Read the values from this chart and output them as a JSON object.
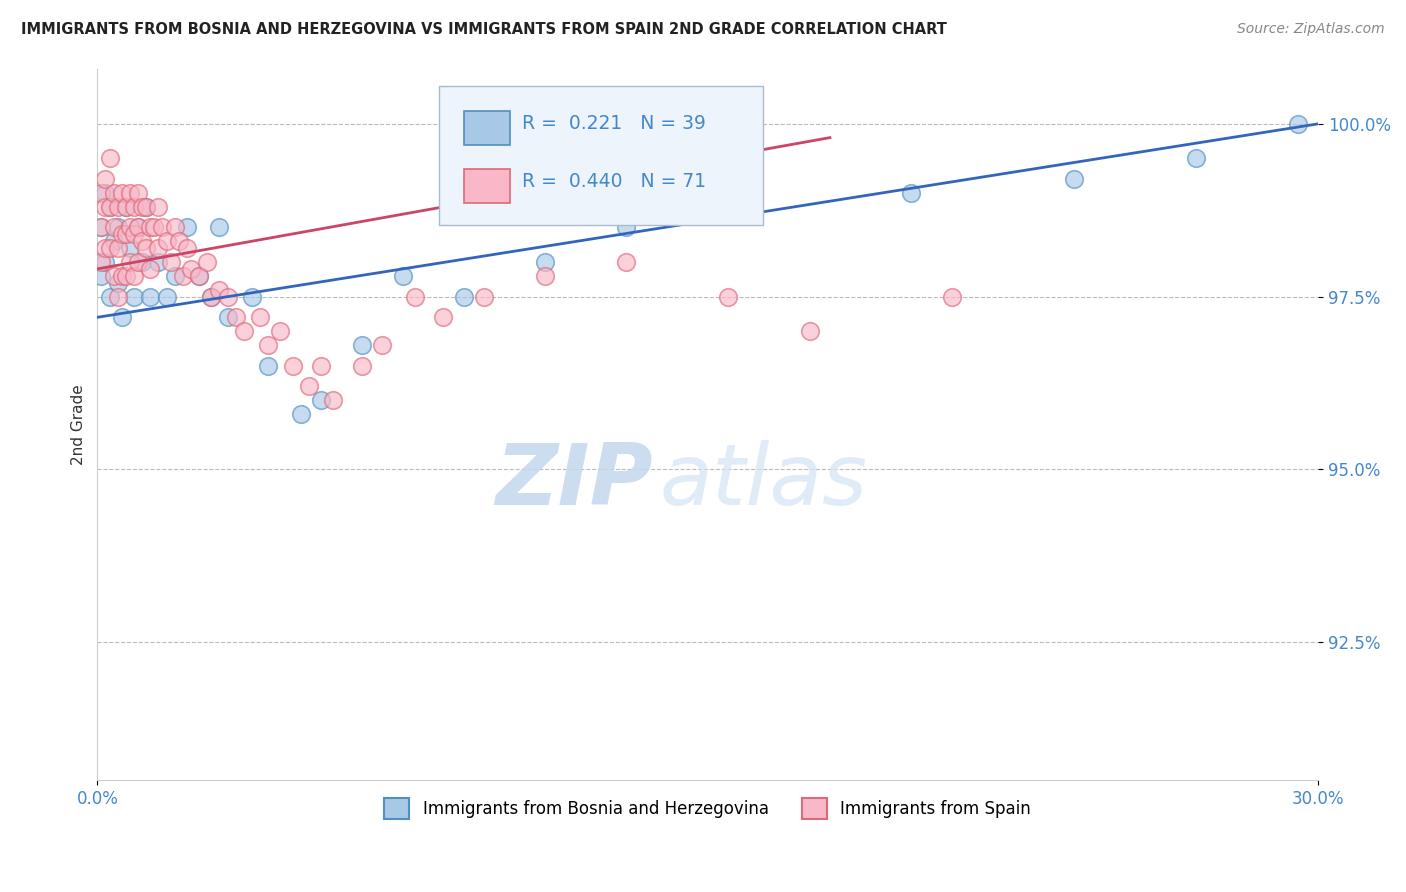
{
  "title": "IMMIGRANTS FROM BOSNIA AND HERZEGOVINA VS IMMIGRANTS FROM SPAIN 2ND GRADE CORRELATION CHART",
  "source_text": "Source: ZipAtlas.com",
  "ylabel": "2nd Grade",
  "xlim": [
    0.0,
    0.3
  ],
  "ylim": [
    0.905,
    1.008
  ],
  "yticks": [
    0.925,
    0.95,
    0.975,
    1.0
  ],
  "ytick_labels": [
    "92.5%",
    "95.0%",
    "97.5%",
    "100.0%"
  ],
  "xtick_labels": [
    "0.0%",
    "30.0%"
  ],
  "xticks": [
    0.0,
    0.3
  ],
  "legend_entries": [
    {
      "label": "Immigrants from Bosnia and Herzegovina",
      "color": "#7ab0d4"
    },
    {
      "label": "Immigrants from Spain",
      "color": "#f4a0b0"
    }
  ],
  "series": [
    {
      "name": "Bosnia and Herzegovina",
      "R": 0.221,
      "N": 39,
      "color_fill": "#a8c8e8",
      "color_edge": "#5090c0",
      "line_color": "#3366bb",
      "line_x0": 0.0,
      "line_y0": 0.972,
      "line_x1": 0.3,
      "line_y1": 1.0,
      "x": [
        0.001,
        0.001,
        0.002,
        0.002,
        0.003,
        0.003,
        0.004,
        0.005,
        0.005,
        0.006,
        0.007,
        0.008,
        0.009,
        0.01,
        0.011,
        0.012,
        0.013,
        0.015,
        0.017,
        0.019,
        0.022,
        0.025,
        0.028,
        0.03,
        0.032,
        0.038,
        0.042,
        0.05,
        0.055,
        0.065,
        0.075,
        0.09,
        0.11,
        0.13,
        0.16,
        0.2,
        0.24,
        0.27,
        0.295
      ],
      "y": [
        0.978,
        0.985,
        0.98,
        0.99,
        0.975,
        0.988,
        0.983,
        0.977,
        0.985,
        0.972,
        0.988,
        0.982,
        0.975,
        0.985,
        0.98,
        0.988,
        0.975,
        0.98,
        0.975,
        0.978,
        0.985,
        0.978,
        0.975,
        0.985,
        0.972,
        0.975,
        0.965,
        0.958,
        0.96,
        0.968,
        0.978,
        0.975,
        0.98,
        0.985,
        0.988,
        0.99,
        0.992,
        0.995,
        1.0
      ]
    },
    {
      "name": "Spain",
      "R": 0.44,
      "N": 71,
      "color_fill": "#f8b8c8",
      "color_edge": "#e06878",
      "line_color": "#cc4466",
      "line_x0": 0.0,
      "line_y0": 0.979,
      "line_x1": 0.18,
      "line_y1": 0.998,
      "x": [
        0.001,
        0.001,
        0.001,
        0.002,
        0.002,
        0.002,
        0.003,
        0.003,
        0.003,
        0.004,
        0.004,
        0.004,
        0.005,
        0.005,
        0.005,
        0.006,
        0.006,
        0.006,
        0.007,
        0.007,
        0.007,
        0.008,
        0.008,
        0.008,
        0.009,
        0.009,
        0.009,
        0.01,
        0.01,
        0.01,
        0.011,
        0.011,
        0.012,
        0.012,
        0.013,
        0.013,
        0.014,
        0.015,
        0.015,
        0.016,
        0.017,
        0.018,
        0.019,
        0.02,
        0.021,
        0.022,
        0.023,
        0.025,
        0.027,
        0.028,
        0.03,
        0.032,
        0.034,
        0.036,
        0.04,
        0.042,
        0.045,
        0.048,
        0.052,
        0.055,
        0.058,
        0.065,
        0.07,
        0.078,
        0.085,
        0.095,
        0.11,
        0.13,
        0.155,
        0.175,
        0.21
      ],
      "y": [
        0.99,
        0.985,
        0.98,
        0.992,
        0.988,
        0.982,
        0.995,
        0.988,
        0.982,
        0.99,
        0.985,
        0.978,
        0.988,
        0.982,
        0.975,
        0.99,
        0.984,
        0.978,
        0.988,
        0.984,
        0.978,
        0.99,
        0.985,
        0.98,
        0.988,
        0.984,
        0.978,
        0.99,
        0.985,
        0.98,
        0.988,
        0.983,
        0.988,
        0.982,
        0.985,
        0.979,
        0.985,
        0.988,
        0.982,
        0.985,
        0.983,
        0.98,
        0.985,
        0.983,
        0.978,
        0.982,
        0.979,
        0.978,
        0.98,
        0.975,
        0.976,
        0.975,
        0.972,
        0.97,
        0.972,
        0.968,
        0.97,
        0.965,
        0.962,
        0.965,
        0.96,
        0.965,
        0.968,
        0.975,
        0.972,
        0.975,
        0.978,
        0.98,
        0.975,
        0.97,
        0.975
      ]
    }
  ],
  "watermark_zip": "ZIP",
  "watermark_atlas": "atlas",
  "background_color": "#ffffff",
  "grid_color": "#bbbbbb",
  "title_color": "#222222",
  "tick_color": "#4488cc",
  "ylabel_color": "#333333",
  "legend_box_bg": "#eef4fc",
  "legend_box_edge": "#aabbcc",
  "legend_r_color": "#4488cc"
}
